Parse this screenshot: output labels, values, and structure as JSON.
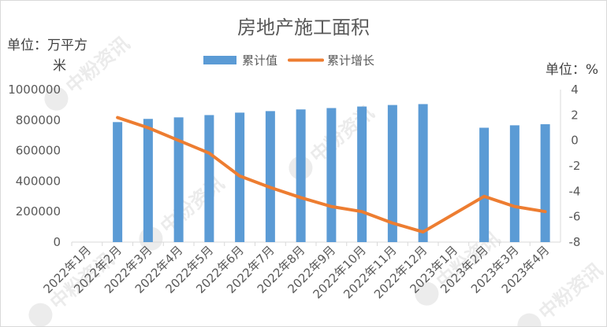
{
  "chart_data": {
    "type": "bar",
    "title": "房地产施工面积",
    "left_unit_line1": "单位：万平方",
    "left_unit_line2": "米",
    "right_unit": "单位：%",
    "categories": [
      "2022年1月",
      "2022年2月",
      "2022年3月",
      "2022年4月",
      "2022年5月",
      "2022年6月",
      "2022年7月",
      "2022年8月",
      "2022年9月",
      "2022年10月",
      "2022年11月",
      "2022年12月",
      "2023年1月",
      "2023年2月",
      "2023年3月",
      "2023年4月"
    ],
    "series": [
      {
        "name": "累计值",
        "type": "bar",
        "axis": "left",
        "color": "#5b9bd5",
        "values": [
          null,
          787000,
          808000,
          818000,
          833000,
          849000,
          859000,
          870000,
          879000,
          889000,
          899000,
          905000,
          null,
          750000,
          766000,
          773000
        ]
      },
      {
        "name": "累计增长",
        "type": "line",
        "axis": "right",
        "color": "#ed7d31",
        "values": [
          null,
          1.8,
          1.0,
          0.0,
          -1.0,
          -2.8,
          -3.7,
          -4.5,
          -5.2,
          -5.6,
          -6.5,
          -7.2,
          null,
          -4.4,
          -5.2,
          -5.6
        ]
      }
    ],
    "y_left": {
      "min": 0,
      "max": 1000000,
      "ticks": [
        "0",
        "200000",
        "400000",
        "600000",
        "800000",
        "1000000"
      ]
    },
    "y_right": {
      "min": -8,
      "max": 4,
      "ticks": [
        "-8",
        "-6",
        "-4",
        "-2",
        "0",
        "2",
        "4"
      ]
    },
    "grid": false,
    "legend": "top-center",
    "watermark": "中粉资讯"
  }
}
